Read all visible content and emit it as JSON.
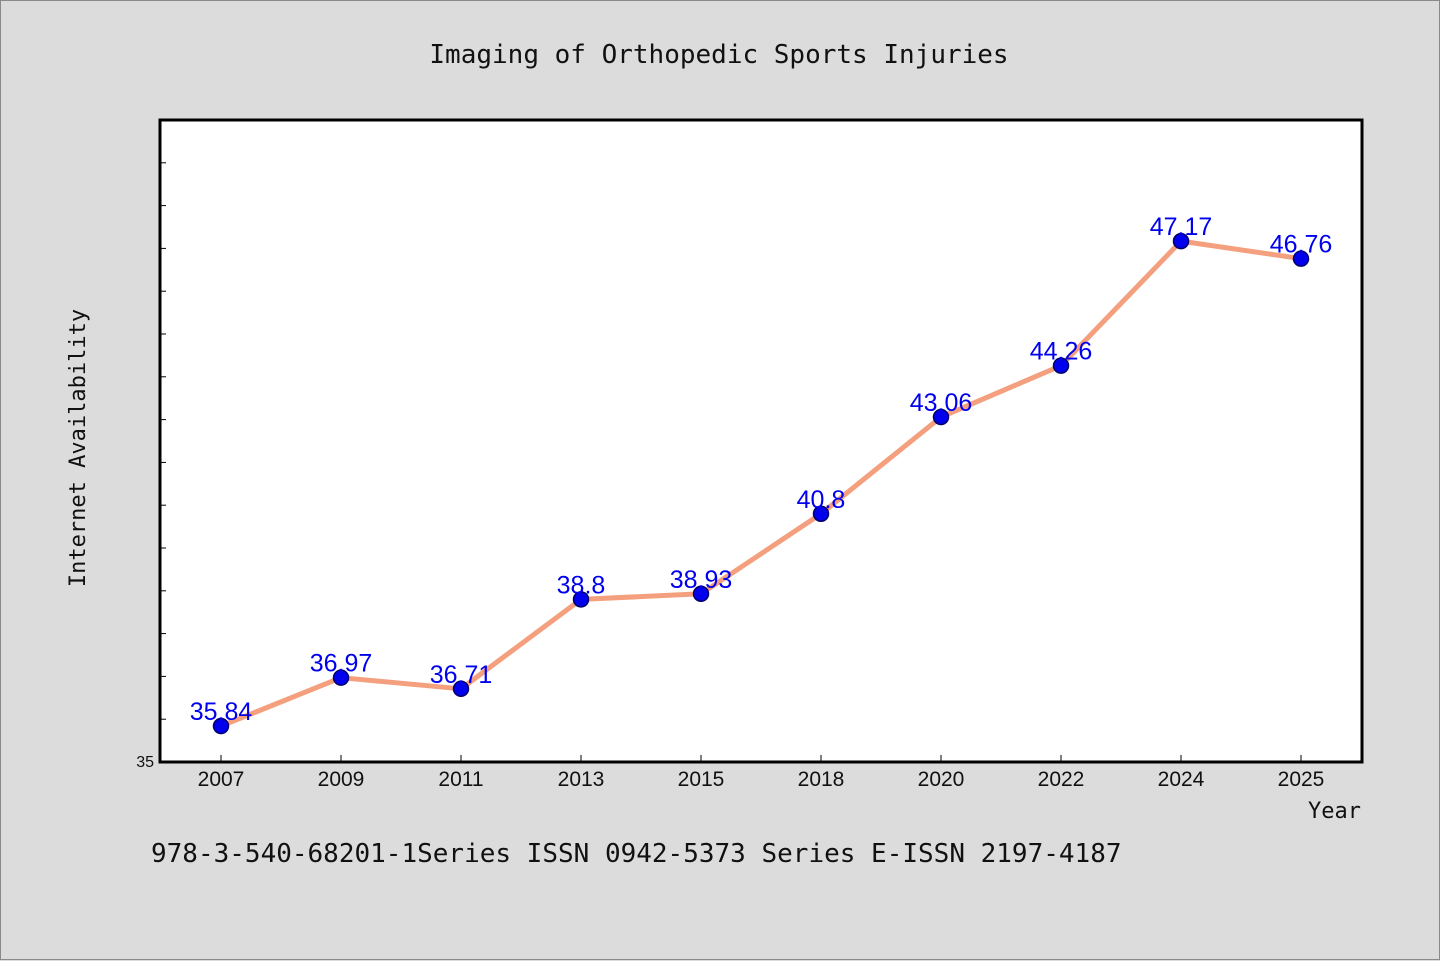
{
  "chart_data": {
    "type": "line",
    "title": "Imaging of Orthopedic Sports Injuries",
    "xlabel": "Year",
    "ylabel": "Internet Availability",
    "categories": [
      "2007",
      "2009",
      "2011",
      "2013",
      "2015",
      "2018",
      "2020",
      "2022",
      "2024",
      "2025"
    ],
    "series": [
      {
        "values": [
          35.84,
          36.97,
          36.71,
          38.8,
          38.93,
          40.8,
          43.06,
          44.26,
          47.17,
          46.76
        ],
        "labels": [
          "35.84",
          "36.97",
          "36.71",
          "38.8",
          "38.93",
          "40.8",
          "43.06",
          "44.26",
          "47.17",
          "46.76"
        ]
      }
    ],
    "ylim": [
      35,
      50
    ],
    "y_tick_label": "35",
    "y_minor_tick_step": 1,
    "grid": false,
    "legend": "none",
    "colors": {
      "line": "#f4a07e",
      "marker": "#0000ee",
      "marker_edge": "#000066",
      "data_label": "#0000ee",
      "plot_background": "#ffffff",
      "figure_background": "#dcdcdc"
    }
  },
  "footer_text": "978-3-540-68201-1Series ISSN 0942-5373 Series E-ISSN 2197-4187"
}
